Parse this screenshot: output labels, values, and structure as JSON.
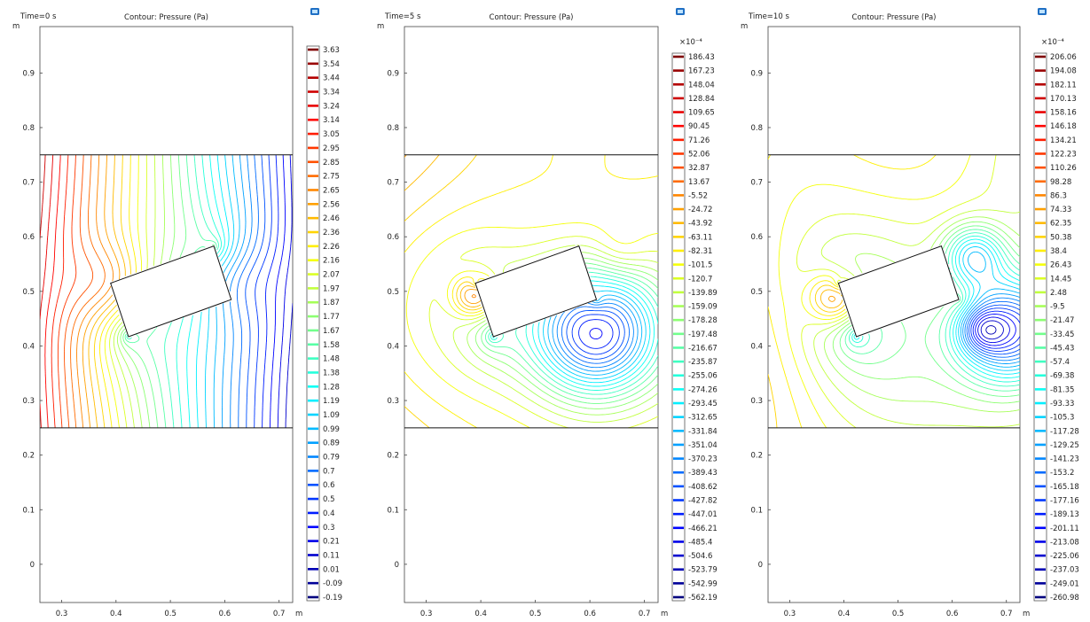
{
  "colors": {
    "scale": [
      "#00007f",
      "#0000ff",
      "#007fff",
      "#00ffff",
      "#7fff7f",
      "#ffff00",
      "#ff7f00",
      "#ff0000",
      "#7f0000"
    ],
    "axis": "#222222",
    "export_icon": "#1f6fc4"
  },
  "icons": {
    "export": "export-image-icon"
  },
  "chart_data": [
    {
      "type": "contour",
      "time_label": "Time=0 s",
      "title": "Contour: Pressure (Pa)",
      "y_unit": "m",
      "x_unit": "m",
      "xlim": [
        0.26,
        0.725
      ],
      "ylim": [
        -0.07,
        0.985
      ],
      "x_ticks": [
        "0.3",
        "0.4",
        "0.5",
        "0.6",
        "0.7"
      ],
      "y_ticks": [
        "0",
        "0.1",
        "0.2",
        "0.3",
        "0.4",
        "0.5",
        "0.6",
        "0.7",
        "0.8",
        "0.9"
      ],
      "channel_y": [
        0.25,
        0.75
      ],
      "obstacle_corners": [
        [
          0.39,
          0.515
        ],
        [
          0.58,
          0.583
        ],
        [
          0.612,
          0.485
        ],
        [
          0.423,
          0.417
        ]
      ],
      "colorbar_multiplier": "",
      "colorbar_values": [
        "3.63",
        "3.54",
        "3.44",
        "3.34",
        "3.24",
        "3.14",
        "3.05",
        "2.95",
        "2.85",
        "2.75",
        "2.65",
        "2.56",
        "2.46",
        "2.36",
        "2.26",
        "2.16",
        "2.07",
        "1.97",
        "1.87",
        "1.77",
        "1.67",
        "1.58",
        "1.48",
        "1.38",
        "1.28",
        "1.19",
        "1.09",
        "0.99",
        "0.89",
        "0.79",
        "0.7",
        "0.6",
        "0.5",
        "0.4",
        "0.3",
        "0.21",
        "0.11",
        "0.01",
        "-0.09",
        "-0.19"
      ]
    },
    {
      "type": "contour",
      "time_label": "Time=5 s",
      "title": "Contour: Pressure (Pa)",
      "y_unit": "m",
      "x_unit": "m",
      "xlim": [
        0.26,
        0.725
      ],
      "ylim": [
        -0.07,
        0.985
      ],
      "x_ticks": [
        "0.3",
        "0.4",
        "0.5",
        "0.6",
        "0.7"
      ],
      "y_ticks": [
        "0",
        "0.1",
        "0.2",
        "0.3",
        "0.4",
        "0.5",
        "0.6",
        "0.7",
        "0.8",
        "0.9"
      ],
      "channel_y": [
        0.25,
        0.75
      ],
      "obstacle_corners": [
        [
          0.39,
          0.515
        ],
        [
          0.58,
          0.583
        ],
        [
          0.612,
          0.485
        ],
        [
          0.423,
          0.417
        ]
      ],
      "colorbar_multiplier": "×10⁻⁴",
      "colorbar_values": [
        "186.43",
        "167.23",
        "148.04",
        "128.84",
        "109.65",
        "90.45",
        "71.26",
        "52.06",
        "32.87",
        "13.67",
        "-5.52",
        "-24.72",
        "-43.92",
        "-63.11",
        "-82.31",
        "-101.5",
        "-120.7",
        "-139.89",
        "-159.09",
        "-178.28",
        "-197.48",
        "-216.67",
        "-235.87",
        "-255.06",
        "-274.26",
        "-293.45",
        "-312.65",
        "-331.84",
        "-351.04",
        "-370.23",
        "-389.43",
        "-408.62",
        "-427.82",
        "-447.01",
        "-466.21",
        "-485.4",
        "-504.6",
        "-523.79",
        "-542.99",
        "-562.19"
      ]
    },
    {
      "type": "contour",
      "time_label": "Time=10 s",
      "title": "Contour: Pressure (Pa)",
      "y_unit": "m",
      "x_unit": "m",
      "xlim": [
        0.26,
        0.725
      ],
      "ylim": [
        -0.07,
        0.985
      ],
      "x_ticks": [
        "0.3",
        "0.4",
        "0.5",
        "0.6",
        "0.7"
      ],
      "y_ticks": [
        "0",
        "0.1",
        "0.2",
        "0.3",
        "0.4",
        "0.5",
        "0.6",
        "0.7",
        "0.8",
        "0.9"
      ],
      "channel_y": [
        0.25,
        0.75
      ],
      "obstacle_corners": [
        [
          0.39,
          0.515
        ],
        [
          0.58,
          0.583
        ],
        [
          0.612,
          0.485
        ],
        [
          0.423,
          0.417
        ]
      ],
      "colorbar_multiplier": "×10⁻⁴",
      "colorbar_values": [
        "206.06",
        "194.08",
        "182.11",
        "170.13",
        "158.16",
        "146.18",
        "134.21",
        "122.23",
        "110.26",
        "98.28",
        "86.3",
        "74.33",
        "62.35",
        "50.38",
        "38.4",
        "26.43",
        "14.45",
        "2.48",
        "-9.5",
        "-21.47",
        "-33.45",
        "-45.43",
        "-57.4",
        "-69.38",
        "-81.35",
        "-93.33",
        "-105.3",
        "-117.28",
        "-129.25",
        "-141.23",
        "-153.2",
        "-165.18",
        "-177.16",
        "-189.13",
        "-201.11",
        "-213.08",
        "-225.06",
        "-237.03",
        "-249.01",
        "-260.98"
      ]
    }
  ]
}
